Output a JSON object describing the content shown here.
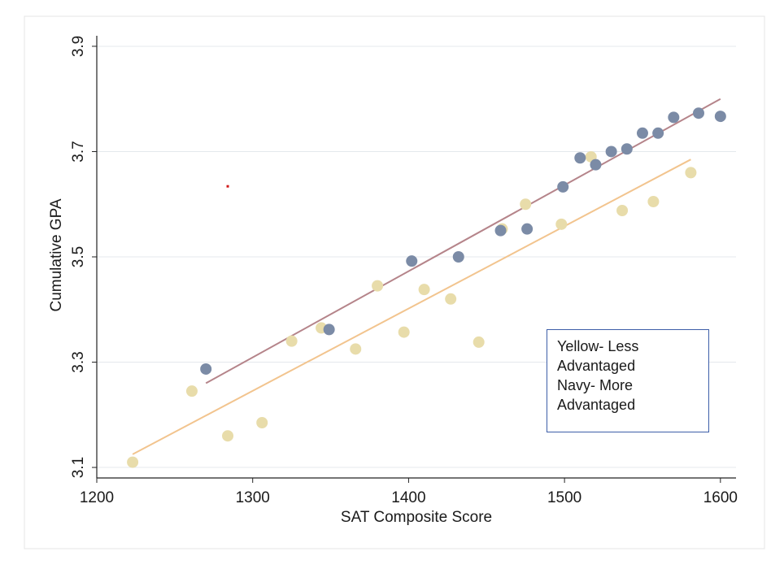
{
  "chart_data": {
    "type": "scatter",
    "title": "",
    "xlabel": "SAT Composite Score",
    "ylabel": "Cumulative GPA",
    "xlim": [
      1200,
      1610
    ],
    "ylim": [
      3.08,
      3.92
    ],
    "xticks": [
      1200,
      1300,
      1400,
      1500,
      1600
    ],
    "yticks": [
      3.1,
      3.3,
      3.5,
      3.7,
      3.9
    ],
    "ytick_labels": [
      "3.1",
      "3.3",
      "3.5",
      "3.7",
      "3.9"
    ],
    "xtick_labels": [
      "1200",
      "1300",
      "1400",
      "1500",
      "1600"
    ],
    "grid": "horizontal",
    "legend_lines": [
      "Yellow- Less",
      "Advantaged",
      "Navy- More",
      "Advantaged"
    ],
    "legend_position": "bottom-right",
    "series": [
      {
        "color": "#e8dcaa",
        "fit_color": "#f2c48e",
        "points": [
          {
            "x": 1223,
            "y": 3.11
          },
          {
            "x": 1261,
            "y": 3.245
          },
          {
            "x": 1284,
            "y": 3.16
          },
          {
            "x": 1306,
            "y": 3.185
          },
          {
            "x": 1325,
            "y": 3.34
          },
          {
            "x": 1344,
            "y": 3.365
          },
          {
            "x": 1366,
            "y": 3.325
          },
          {
            "x": 1380,
            "y": 3.445
          },
          {
            "x": 1397,
            "y": 3.357
          },
          {
            "x": 1410,
            "y": 3.438
          },
          {
            "x": 1427,
            "y": 3.42
          },
          {
            "x": 1445,
            "y": 3.338
          },
          {
            "x": 1460,
            "y": 3.553
          },
          {
            "x": 1475,
            "y": 3.6
          },
          {
            "x": 1498,
            "y": 3.562
          },
          {
            "x": 1517,
            "y": 3.69
          },
          {
            "x": 1537,
            "y": 3.588
          },
          {
            "x": 1557,
            "y": 3.605
          },
          {
            "x": 1581,
            "y": 3.66
          }
        ],
        "fit": {
          "x1": 1223,
          "y1": 3.125,
          "x2": 1581,
          "y2": 3.685
        }
      },
      {
        "color": "#7b8ba6",
        "fit_color": "#b5848a",
        "points": [
          {
            "x": 1270,
            "y": 3.287
          },
          {
            "x": 1349,
            "y": 3.362
          },
          {
            "x": 1402,
            "y": 3.492
          },
          {
            "x": 1432,
            "y": 3.5
          },
          {
            "x": 1459,
            "y": 3.55
          },
          {
            "x": 1476,
            "y": 3.553
          },
          {
            "x": 1499,
            "y": 3.633
          },
          {
            "x": 1510,
            "y": 3.688
          },
          {
            "x": 1520,
            "y": 3.675
          },
          {
            "x": 1530,
            "y": 3.7
          },
          {
            "x": 1540,
            "y": 3.705
          },
          {
            "x": 1550,
            "y": 3.735
          },
          {
            "x": 1560,
            "y": 3.735
          },
          {
            "x": 1570,
            "y": 3.765
          },
          {
            "x": 1586,
            "y": 3.773
          },
          {
            "x": 1600,
            "y": 3.767
          }
        ],
        "fit": {
          "x1": 1270,
          "y1": 3.26,
          "x2": 1600,
          "y2": 3.8
        }
      }
    ],
    "annotation_marker": {
      "x": 1284,
      "y": 3.634,
      "color": "#d11a1a"
    }
  }
}
